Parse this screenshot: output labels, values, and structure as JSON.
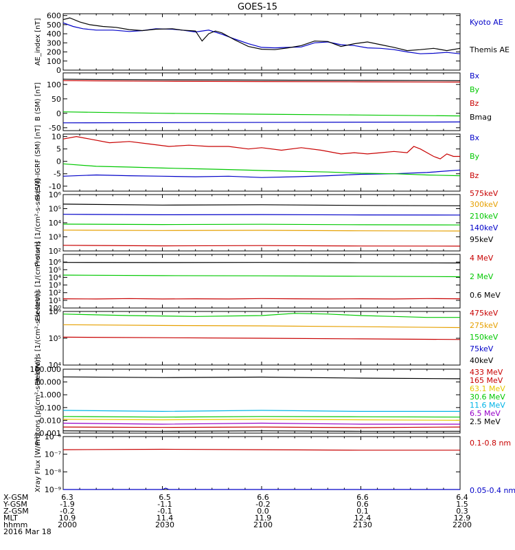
{
  "title": "GOES-15",
  "time_ticks": [
    "2000",
    "2030",
    "2100",
    "2130",
    "2200"
  ],
  "footer": {
    "row_labels": [
      "X-GSM",
      "Y-GSM",
      "Z-GSM",
      "MLT",
      "hhmm"
    ],
    "rows": [
      [
        "6.3",
        "6.5",
        "6.6",
        "6.6",
        "6.4"
      ],
      [
        "-1.9",
        "-1.1",
        "-0.2",
        "0.6",
        "1.5"
      ],
      [
        "-0.2",
        "-0.1",
        "0.0",
        "0.1",
        "0.3"
      ],
      [
        "10.9",
        "11.4",
        "11.9",
        "12.4",
        "12.9"
      ],
      [
        "2000",
        "2030",
        "2100",
        "2130",
        "2200"
      ]
    ],
    "date": "2016 Mar 18"
  },
  "chart_data": [
    {
      "type": "line",
      "ylabel": "AE_index [nT]",
      "scale": "linear",
      "ylim": [
        0,
        620
      ],
      "ticks": [
        0,
        100,
        200,
        300,
        400,
        500,
        600
      ],
      "tick_labels": [
        "0",
        "100",
        "200",
        "300",
        "400",
        "500",
        "600"
      ],
      "series": [
        {
          "name": "Kyoto AE",
          "color": "#0000c8",
          "t": [
            0,
            3,
            6,
            10,
            15,
            20,
            24,
            28,
            33,
            36,
            40,
            44,
            48,
            52,
            56,
            60,
            64,
            68,
            72,
            76,
            80,
            84,
            88,
            92,
            96,
            100,
            104,
            108,
            112,
            116,
            120
          ],
          "values": [
            520,
            480,
            455,
            440,
            440,
            425,
            435,
            455,
            450,
            440,
            420,
            440,
            395,
            340,
            290,
            250,
            245,
            250,
            255,
            300,
            310,
            280,
            270,
            245,
            240,
            225,
            200,
            180,
            185,
            195,
            180
          ]
        },
        {
          "name": "Themis AE",
          "color": "#000000",
          "t": [
            0,
            2,
            5,
            8,
            12,
            16,
            20,
            24,
            28,
            33,
            36,
            40,
            42,
            44,
            46,
            48,
            52,
            56,
            60,
            64,
            68,
            72,
            76,
            80,
            84,
            88,
            92,
            96,
            100,
            104,
            108,
            112,
            116,
            120
          ],
          "values": [
            555,
            575,
            530,
            500,
            480,
            470,
            445,
            435,
            450,
            455,
            440,
            430,
            320,
            400,
            430,
            410,
            330,
            260,
            230,
            225,
            245,
            270,
            320,
            315,
            260,
            290,
            310,
            280,
            250,
            215,
            225,
            240,
            215,
            240
          ]
        }
      ],
      "legend": [
        "Kyoto AE",
        "Themis AE"
      ]
    },
    {
      "type": "line",
      "ylabel": "B (SM) [nT]",
      "scale": "linear",
      "ylim": [
        -60,
        140
      ],
      "ticks": [
        -50,
        0,
        50,
        100
      ],
      "tick_labels": [
        "-50",
        "0",
        "50",
        "100"
      ],
      "series": [
        {
          "name": "Bx",
          "color": "#0000c8",
          "t": [
            0,
            120
          ],
          "values": [
            -33,
            -30
          ]
        },
        {
          "name": "By",
          "color": "#00c800",
          "t": [
            0,
            30,
            60,
            90,
            120
          ],
          "values": [
            5,
            0,
            -3,
            -6,
            -9
          ]
        },
        {
          "name": "Bz",
          "color": "#c80000",
          "t": [
            0,
            30,
            60,
            90,
            120
          ],
          "values": [
            113,
            111,
            110,
            109,
            108
          ]
        },
        {
          "name": "Bmag",
          "color": "#000000",
          "t": [
            0,
            30,
            60,
            90,
            120
          ],
          "values": [
            118,
            116,
            115,
            114,
            113
          ]
        }
      ],
      "legend": [
        "Bx",
        "By",
        "Bz",
        "Bmag"
      ]
    },
    {
      "type": "line",
      "ylabel": "B (SM)-IGRF (SM) [nT]",
      "scale": "linear",
      "ylim": [
        -12,
        11
      ],
      "ticks": [
        -10,
        -5,
        0,
        5,
        10
      ],
      "tick_labels": [
        "-10",
        "-5",
        "0",
        "5",
        "10"
      ],
      "series": [
        {
          "name": "Bx",
          "color": "#0000c8",
          "t": [
            0,
            10,
            20,
            30,
            40,
            50,
            60,
            70,
            80,
            85,
            90,
            100,
            110,
            120
          ],
          "values": [
            -6,
            -5.5,
            -5.8,
            -6,
            -6.2,
            -6,
            -6.5,
            -6.2,
            -5.8,
            -5.5,
            -5.2,
            -5,
            -4.5,
            -3.5
          ]
        },
        {
          "name": "By",
          "color": "#00c800",
          "t": [
            0,
            10,
            20,
            30,
            40,
            50,
            60,
            70,
            80,
            90,
            100,
            110,
            120
          ],
          "values": [
            -1,
            -2,
            -2.3,
            -2.7,
            -3,
            -3.3,
            -3.7,
            -4,
            -4.3,
            -4.8,
            -5,
            -5.5,
            -5.8
          ]
        },
        {
          "name": "Bz",
          "color": "#c80000",
          "t": [
            0,
            4,
            8,
            14,
            20,
            26,
            32,
            38,
            44,
            50,
            56,
            60,
            66,
            72,
            78,
            84,
            88,
            92,
            96,
            100,
            104,
            106,
            108,
            112,
            114,
            116,
            118,
            120
          ],
          "values": [
            9,
            10,
            9,
            7.5,
            8,
            7,
            6,
            6.5,
            6,
            6,
            5,
            5.5,
            4.5,
            5.5,
            4.5,
            3,
            3.5,
            3,
            3.5,
            4,
            3.5,
            6,
            5,
            2,
            1,
            3,
            2,
            2
          ]
        }
      ],
      "legend": [
        "Bx",
        "By",
        "Bz"
      ]
    },
    {
      "type": "line",
      "ylabel": "Protons [1/(cm²-s-sr-keV)]",
      "scale": "log",
      "ylim": [
        100,
        1000000
      ],
      "ticks": [
        100,
        1000,
        10000,
        100000,
        1000000
      ],
      "tick_labels": [
        "10²",
        "10³",
        "10⁴",
        "10⁵",
        "10⁶"
      ],
      "series": [
        {
          "name": "575keV",
          "color": "#000000",
          "t": [
            0,
            30,
            60,
            90,
            120
          ],
          "values": [
            210000,
            180000,
            190000,
            170000,
            160000
          ]
        },
        {
          "name": "300keV",
          "color": "#e6a000",
          "t": [
            0,
            30,
            60,
            90,
            120
          ],
          "values": [
            3000,
            2800,
            2900,
            2700,
            2600
          ]
        },
        {
          "name": "210keV",
          "color": "#00c800",
          "t": [
            0,
            30,
            60,
            90,
            120
          ],
          "values": [
            8000,
            7500,
            7800,
            7200,
            7000
          ]
        },
        {
          "name": "140keV",
          "color": "#0000c8",
          "t": [
            0,
            30,
            60,
            90,
            120
          ],
          "values": [
            40000,
            37000,
            38000,
            36000,
            35000
          ]
        },
        {
          "name": "95keV",
          "color": "#c80000",
          "t": [
            0,
            30,
            60,
            90,
            120
          ],
          "values": [
            250,
            230,
            240,
            225,
            220
          ]
        }
      ],
      "legend": [
        "575keV",
        "300keV",
        "210keV",
        "140keV",
        "95keV"
      ]
    },
    {
      "type": "line",
      "ylabel": "Electrons [1/(cm²-s-sr)]",
      "scale": "log",
      "ylim": [
        1,
        10000000
      ],
      "ticks": [
        1,
        10,
        100,
        1000,
        10000,
        100000,
        1000000
      ],
      "tick_labels": [
        "10⁰",
        "10¹",
        "10²",
        "10³",
        "10⁴",
        "10⁵",
        "10⁶"
      ],
      "series": [
        {
          "name": "4 MeV",
          "color": "#c80000",
          "t": [
            0,
            10,
            20,
            30,
            40,
            50,
            60,
            70,
            80,
            90,
            100,
            110,
            120
          ],
          "values": [
            16,
            15,
            17,
            15,
            16,
            15,
            17,
            16,
            15,
            16,
            15,
            17,
            16
          ]
        },
        {
          "name": "2 MeV",
          "color": "#00c800",
          "t": [
            0,
            30,
            60,
            90,
            120
          ],
          "values": [
            20000,
            17000,
            16000,
            14000,
            12000
          ]
        },
        {
          "name": "0.6 MeV",
          "color": "#000000",
          "t": [
            0,
            30,
            60,
            90,
            120
          ],
          "values": [
            900000,
            850000,
            900000,
            800000,
            750000
          ]
        }
      ],
      "legend": [
        "4 MeV",
        "2 MeV",
        "0.6 MeV"
      ]
    },
    {
      "type": "line",
      "ylabel": "Electrons [1/(cm²-s-sr-keV)]",
      "scale": "log",
      "ylim": [
        10000,
        1000000
      ],
      "ticks": [
        10000,
        100000,
        1000000
      ],
      "tick_labels": [
        "10⁴",
        "10⁵",
        "10⁶"
      ],
      "series": [
        {
          "name": "475keV",
          "color": "#c80000",
          "t": [
            0,
            30,
            60,
            90,
            120
          ],
          "values": [
            110000,
            105000,
            100000,
            95000,
            90000
          ]
        },
        {
          "name": "275keV",
          "color": "#e6a000",
          "t": [
            0,
            30,
            60,
            90,
            120
          ],
          "values": [
            320000,
            300000,
            290000,
            270000,
            250000
          ]
        },
        {
          "name": "150keV",
          "color": "#00c800",
          "t": [
            0,
            20,
            40,
            60,
            70,
            80,
            90,
            100,
            110,
            120
          ],
          "values": [
            800000,
            700000,
            650000,
            700000,
            850000,
            800000,
            700000,
            650000,
            600000,
            600000
          ]
        }
      ],
      "legend": [
        "475keV",
        "275keV",
        "150keV",
        "75keV",
        "40keV"
      ]
    },
    {
      "type": "line",
      "ylabel": "Protons [p/(cm²-s-sr-keV)]",
      "scale": "log",
      "ylim": [
        0.001,
        100
      ],
      "ticks": [
        0.001,
        0.01,
        0.1,
        1,
        10,
        100
      ],
      "tick_labels": [
        "0.001",
        "0.010",
        "0.100",
        "1.000",
        "10.000",
        "100.000"
      ],
      "series": [
        {
          "name": "433 MeV",
          "color": "#000000",
          "t": [
            0,
            30,
            60,
            90,
            120
          ],
          "values": [
            25,
            22,
            24,
            20,
            18
          ]
        },
        {
          "name": "165 MeV",
          "color": "#c80000",
          "t": [
            0,
            30,
            60,
            90,
            120
          ],
          "values": [
            0.003,
            0.0028,
            0.003,
            0.0027,
            0.003
          ]
        },
        {
          "name": "63.1 MeV",
          "color": "#e6c800",
          "t": [
            0,
            30,
            60,
            90,
            120
          ],
          "values": [
            0.012,
            0.011,
            0.012,
            0.011,
            0.01
          ]
        },
        {
          "name": "30.6 MeV",
          "color": "#00c800",
          "t": [
            0,
            30,
            60,
            90,
            120
          ],
          "values": [
            0.02,
            0.018,
            0.02,
            0.019,
            0.018
          ]
        },
        {
          "name": "11.6 MeV",
          "color": "#00b4e6",
          "t": [
            0,
            30,
            60,
            90,
            120
          ],
          "values": [
            0.06,
            0.05,
            0.06,
            0.05,
            0.05
          ]
        },
        {
          "name": "6.5 MeV",
          "color": "#9600c8",
          "t": [
            0,
            30,
            60,
            90,
            120
          ],
          "values": [
            0.006,
            0.005,
            0.006,
            0.005,
            0.005
          ]
        },
        {
          "name": "2.5 MeV",
          "color": "#000000",
          "t": [
            0,
            30,
            60,
            90,
            120
          ],
          "values": [
            0.0015,
            0.0014,
            0.0015,
            0.0014,
            0.0014
          ]
        }
      ],
      "legend": [
        "433 MeV",
        "165 MeV",
        "63.1 MeV",
        "30.6 MeV",
        "11.6 MeV",
        "6.5 MeV",
        "2.5 MeV"
      ]
    },
    {
      "type": "line",
      "ylabel": "Xray Flux [W/m²]",
      "scale": "log",
      "ylim": [
        1e-09,
        1e-06
      ],
      "ticks": [
        1e-09,
        1e-08,
        1e-07,
        1e-06
      ],
      "tick_labels": [
        "10⁻⁹",
        "10⁻⁸",
        "10⁻⁷",
        "10⁻⁶"
      ],
      "series": [
        {
          "name": "0.1-0.8 nm",
          "color": "#c80000",
          "t": [
            0,
            30,
            60,
            90,
            120
          ],
          "values": [
            1.8e-07,
            1.9e-07,
            1.8e-07,
            1.7e-07,
            1.7e-07
          ]
        },
        {
          "name": "0.05-0.4 nm",
          "color": "#0000c8",
          "t": [
            0,
            10,
            20,
            30,
            31,
            32,
            40,
            50,
            60,
            70,
            80,
            90,
            100,
            110,
            120
          ],
          "values": [
            1e-09,
            1e-09,
            1e-09,
            1e-09,
            1.2e-09,
            1e-09,
            1e-09,
            1e-09,
            1e-09,
            1e-09,
            1e-09,
            1e-09,
            1e-09,
            1e-09,
            1e-09
          ]
        }
      ],
      "legend": [
        "0.1-0.8 nm",
        "0.05-0.4 nm"
      ]
    }
  ],
  "colors": {
    "axis": "#000000",
    "background": "#ffffff"
  }
}
